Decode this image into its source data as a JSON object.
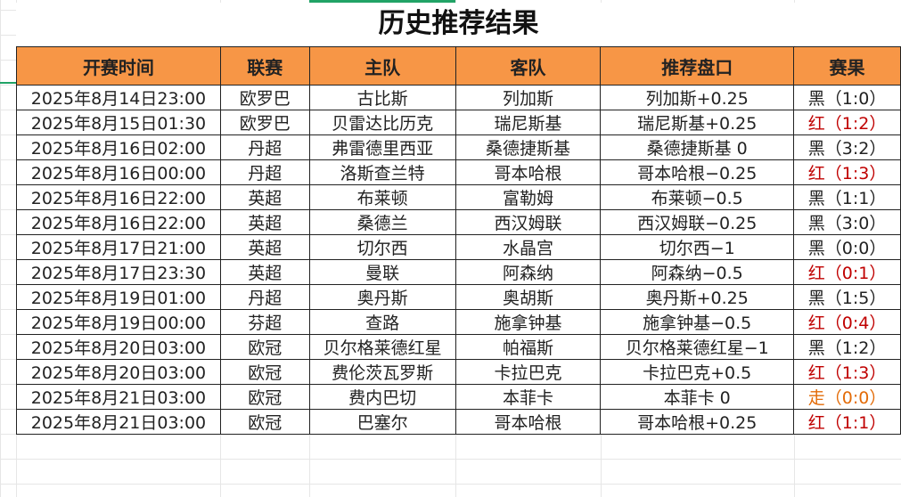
{
  "title": "历史推荐结果",
  "headers": [
    "开赛时间",
    "联赛",
    "主队",
    "客队",
    "推荐盘口",
    "赛果"
  ],
  "colors": {
    "header_bg": "#f79646",
    "red": "#c00000",
    "orange": "#e36c09",
    "black": "#222222"
  },
  "rows": [
    [
      "2025年8月14日23:00",
      "欧罗巴",
      "古比斯",
      "列加斯",
      "列加斯+0.25",
      "黑（1:0）",
      "black"
    ],
    [
      "2025年8月15日01:30",
      "欧罗巴",
      "贝雷达比历克",
      "瑞尼斯基",
      "瑞尼斯基+0.25",
      "红（1:2）",
      "red"
    ],
    [
      "2025年8月16日02:00",
      "丹超",
      "弗雷德里西亚",
      "桑德捷斯基",
      "桑德捷斯基 0",
      "黑（3:2）",
      "black"
    ],
    [
      "2025年8月16日00:00",
      "丹超",
      "洛斯查兰特",
      "哥本哈根",
      "哥本哈根−0.25",
      "红（1:3）",
      "red"
    ],
    [
      "2025年8月16日22:00",
      "英超",
      "布莱顿",
      "富勒姆",
      "布莱顿−0.5",
      "黑（1:1）",
      "black"
    ],
    [
      "2025年8月16日22:00",
      "英超",
      "桑德兰",
      "西汉姆联",
      "西汉姆联−0.25",
      "黑（3:0）",
      "black"
    ],
    [
      "2025年8月17日21:00",
      "英超",
      "切尔西",
      "水晶宫",
      "切尔西−1",
      "黑（0:0）",
      "black"
    ],
    [
      "2025年8月17日23:30",
      "英超",
      "曼联",
      "阿森纳",
      "阿森纳−0.5",
      "红（0:1）",
      "red"
    ],
    [
      "2025年8月19日01:00",
      "丹超",
      "奥丹斯",
      "奥胡斯",
      "奥丹斯+0.25",
      "黑（1:5）",
      "black"
    ],
    [
      "2025年8月19日00:00",
      "芬超",
      "查路",
      "施拿钟基",
      "施拿钟基−0.5",
      "红（0:4）",
      "red"
    ],
    [
      "2025年8月20日03:00",
      "欧冠",
      "贝尔格莱德红星",
      "帕福斯",
      "贝尔格莱德红星−1",
      "黑（1:2）",
      "black"
    ],
    [
      "2025年8月20日03:00",
      "欧冠",
      "费伦茨瓦罗斯",
      "卡拉巴克",
      "卡拉巴克+0.5",
      "红（1:3）",
      "red"
    ],
    [
      "2025年8月21日03:00",
      "欧冠",
      "费内巴切",
      "本菲卡",
      "本菲卡 0",
      "走（0:0）",
      "orange"
    ],
    [
      "2025年8月21日03:00",
      "欧冠",
      "巴塞尔",
      "哥本哈根",
      "哥本哈根+0.25",
      "红（1:1）",
      "red"
    ]
  ]
}
